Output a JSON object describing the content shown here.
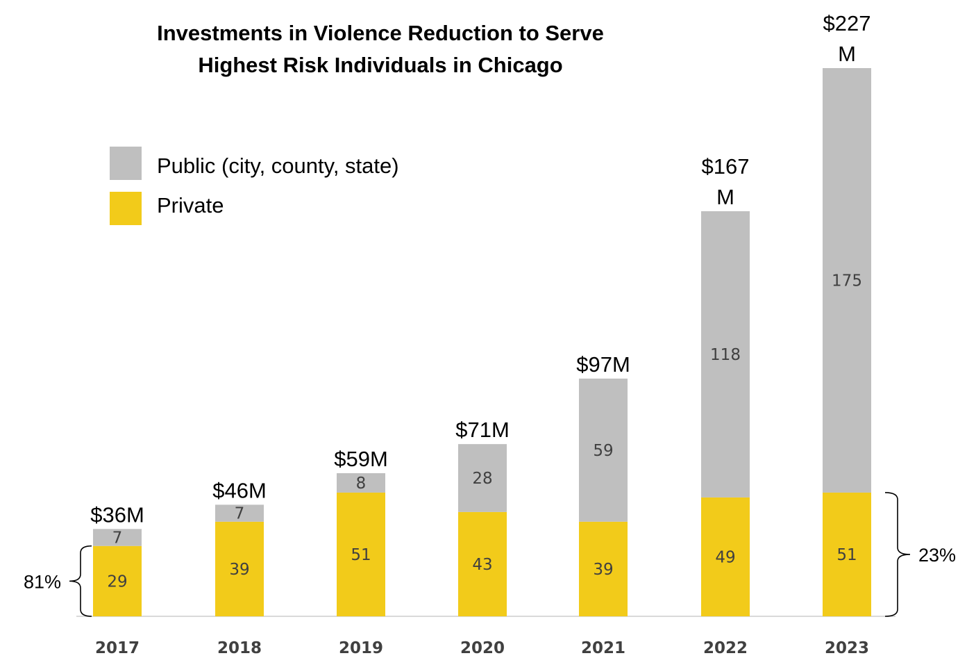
{
  "chart_data": {
    "type": "bar",
    "stacked": true,
    "title_lines": [
      "Investments in Violence Reduction to Serve",
      "Highest Risk Individuals in Chicago"
    ],
    "categories": [
      "2017",
      "2018",
      "2019",
      "2020",
      "2021",
      "2022",
      "2023"
    ],
    "series": [
      {
        "name": "Private",
        "color": "#F2CB1A",
        "values": [
          29,
          39,
          51,
          43,
          39,
          49,
          51
        ]
      },
      {
        "name": "Public (city, county, state)",
        "color": "#BFBFBF",
        "values": [
          7,
          7,
          8,
          28,
          59,
          118,
          175
        ]
      }
    ],
    "totals": [
      {
        "lines": [
          "$36M"
        ]
      },
      {
        "lines": [
          "$46M"
        ]
      },
      {
        "lines": [
          "$59M"
        ]
      },
      {
        "lines": [
          "$71M"
        ]
      },
      {
        "lines": [
          "$97M"
        ]
      },
      {
        "lines": [
          "$167",
          "M"
        ]
      },
      {
        "lines": [
          "$227",
          "M"
        ]
      }
    ],
    "annotations": [
      {
        "text": "81%",
        "category": "2017",
        "side": "left"
      },
      {
        "text": "23%",
        "category": "2023",
        "side": "right"
      }
    ],
    "legend": {
      "position": "top-left",
      "order": [
        "Public (city, county, state)",
        "Private"
      ]
    },
    "grid": false,
    "axis_line_color": "#D9D9D9"
  }
}
